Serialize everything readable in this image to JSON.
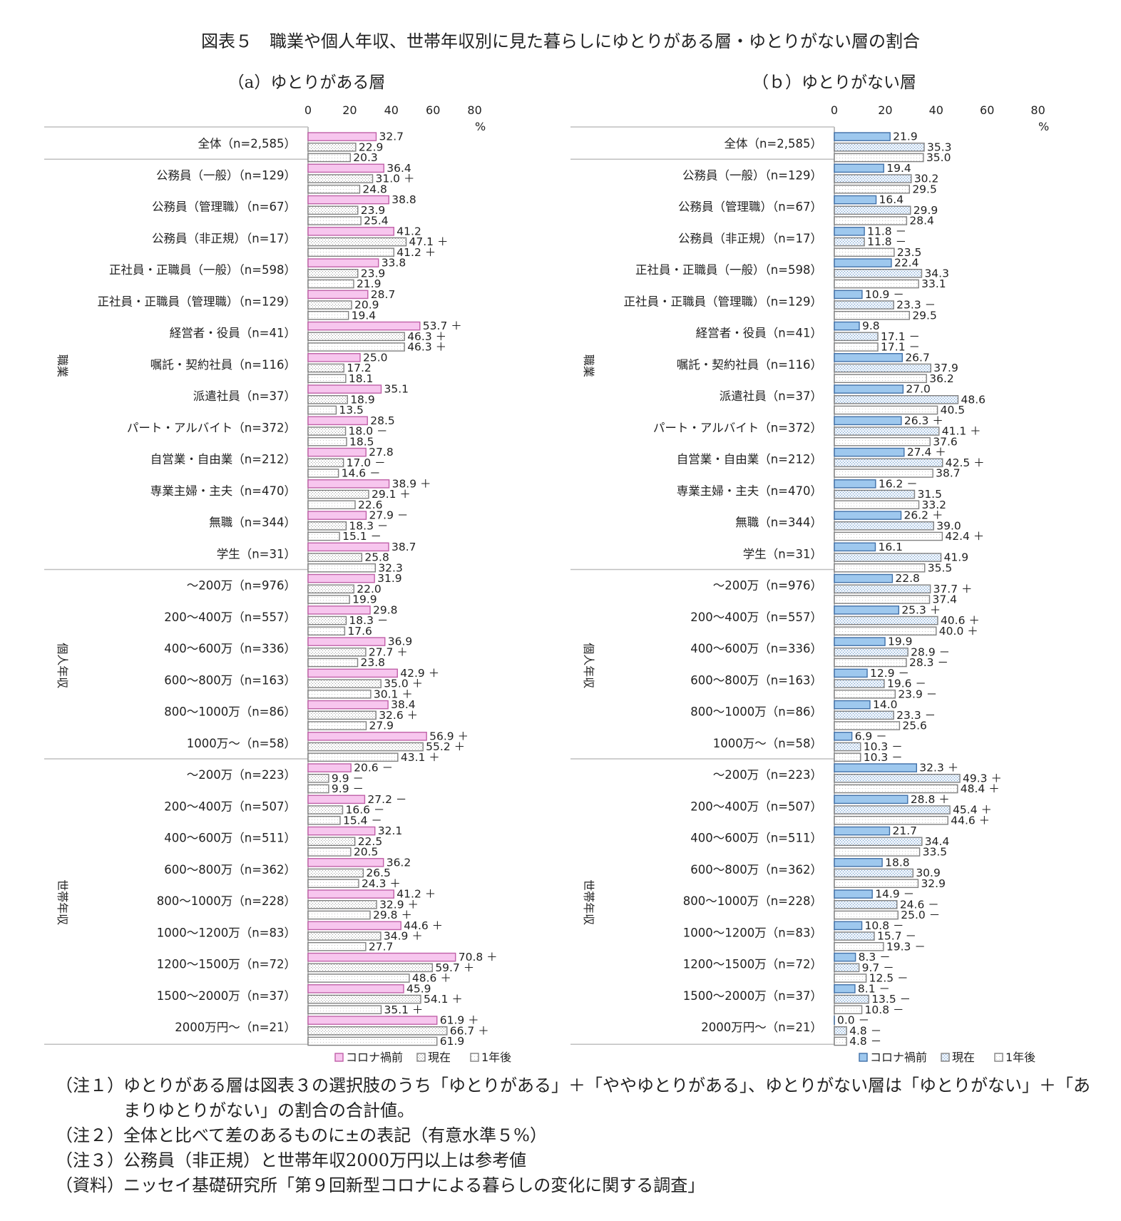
{
  "title": "図表５　職業や個人年収、世帯年収別に見た暮らしにゆとりがある層・ゆとりがない層の割合",
  "percent_unit": "%",
  "legend": [
    "コロナ禍前",
    "現在",
    "1年後"
  ],
  "colors": {
    "a_before": "#f7c6ee",
    "a_before_stroke": "#c060a8",
    "b_before": "#9ec8ee",
    "b_before_stroke": "#4070a8",
    "now_stroke": "#808080",
    "after_stroke": "#808080",
    "axis_line": "#bfbfbf",
    "text": "#222222"
  },
  "groups": [
    {
      "label": "職業",
      "start": 1,
      "end": 13
    },
    {
      "label": "個人年収",
      "start": 14,
      "end": 19
    },
    {
      "label": "世帯年収",
      "start": 20,
      "end": 28
    }
  ],
  "categories": [
    "全体（n=2,585）",
    "公務員（一般）（n=129）",
    "公務員（管理職）（n=67）",
    "公務員（非正規）（n=17）",
    "正社員・正職員（一般）（n=598）",
    "正社員・正職員（管理職）（n=129）",
    "経営者・役員（n=41）",
    "嘱託・契約社員（n=116）",
    "派遣社員（n=37）",
    "パート・アルバイト（n=372）",
    "自営業・自由業（n=212）",
    "専業主婦・主夫（n=470）",
    "無職（n=344）",
    "学生（n=31）",
    "～200万（n=976）",
    "200～400万（n=557）",
    "400～600万（n=336）",
    "600～800万（n=163）",
    "800～1000万（n=86）",
    "1000万～（n=58）",
    "～200万（n=223）",
    "200～400万（n=507）",
    "400～600万（n=511）",
    "600～800万（n=362）",
    "800～1000万（n=228）",
    "1000～1200万（n=83）",
    "1200～1500万（n=72）",
    "1500～2000万（n=37）",
    "2000万円～（n=21）"
  ],
  "chart_data": [
    {
      "type": "bar",
      "panel_title": "（a）ゆとりがある層",
      "xlim": [
        0,
        80
      ],
      "xticks": [
        0,
        20,
        40,
        60,
        80
      ],
      "series": [
        {
          "name": "コロナ禍前",
          "values": [
            32.7,
            36.4,
            38.8,
            41.2,
            33.8,
            28.7,
            53.7,
            25.0,
            35.1,
            28.5,
            27.8,
            38.9,
            27.9,
            38.7,
            31.9,
            29.8,
            36.9,
            42.9,
            38.4,
            56.9,
            20.6,
            27.2,
            32.1,
            36.2,
            41.2,
            44.6,
            70.8,
            45.9,
            61.9
          ],
          "marks": [
            "",
            "",
            "",
            "",
            "",
            "",
            "＋",
            "",
            "",
            "",
            "",
            "＋",
            "－",
            "",
            "",
            "",
            "",
            "＋",
            "",
            "＋",
            "－",
            "－",
            "",
            "",
            "＋",
            "＋",
            "＋",
            "",
            "＋"
          ]
        },
        {
          "name": "現在",
          "values": [
            22.9,
            31.0,
            23.9,
            47.1,
            23.9,
            20.9,
            46.3,
            17.2,
            18.9,
            18.0,
            17.0,
            29.1,
            18.3,
            25.8,
            22.0,
            18.3,
            27.7,
            35.0,
            32.6,
            55.2,
            9.9,
            16.6,
            22.5,
            26.5,
            32.9,
            34.9,
            59.7,
            54.1,
            66.7
          ],
          "marks": [
            "",
            "＋",
            "",
            "＋",
            "",
            "",
            "＋",
            "",
            "",
            "－",
            "－",
            "＋",
            "－",
            "",
            "",
            "－",
            "＋",
            "＋",
            "＋",
            "＋",
            "－",
            "－",
            "",
            "",
            "＋",
            "＋",
            "＋",
            "＋",
            "＋"
          ]
        },
        {
          "name": "1年後",
          "values": [
            20.3,
            24.8,
            25.4,
            41.2,
            21.9,
            19.4,
            46.3,
            18.1,
            13.5,
            18.5,
            14.6,
            22.6,
            15.1,
            32.3,
            19.9,
            17.6,
            23.8,
            30.1,
            27.9,
            43.1,
            9.9,
            15.4,
            20.5,
            24.3,
            29.8,
            27.7,
            48.6,
            35.1,
            61.9
          ],
          "marks": [
            "",
            "",
            "",
            "＋",
            "",
            "",
            "＋",
            "",
            "",
            "",
            "－",
            "",
            "－",
            "",
            "",
            "",
            "",
            "＋",
            "",
            "＋",
            "－",
            "－",
            "",
            "＋",
            "＋",
            "",
            "＋",
            "＋",
            ""
          ]
        }
      ]
    },
    {
      "type": "bar",
      "panel_title": "（ｂ）ゆとりがない層",
      "xlim": [
        0,
        80
      ],
      "xticks": [
        0,
        20,
        40,
        60,
        80
      ],
      "series": [
        {
          "name": "コロナ禍前",
          "values": [
            21.9,
            19.4,
            16.4,
            11.8,
            22.4,
            10.9,
            9.8,
            26.7,
            27.0,
            26.3,
            27.4,
            16.2,
            26.2,
            16.1,
            22.8,
            25.3,
            19.9,
            12.9,
            14.0,
            6.9,
            32.3,
            28.8,
            21.7,
            18.8,
            14.9,
            10.8,
            8.3,
            8.1,
            0.0
          ],
          "marks": [
            "",
            "",
            "",
            "－",
            "",
            "－",
            "",
            "",
            "",
            "＋",
            "＋",
            "－",
            "＋",
            "",
            "",
            "＋",
            "",
            "－",
            "",
            "－",
            "＋",
            "＋",
            "",
            "",
            "－",
            "－",
            "－",
            "－",
            "－"
          ]
        },
        {
          "name": "現在",
          "values": [
            35.3,
            30.2,
            29.9,
            11.8,
            34.3,
            23.3,
            17.1,
            37.9,
            48.6,
            41.1,
            42.5,
            31.5,
            39.0,
            41.9,
            37.7,
            40.6,
            28.9,
            19.6,
            23.3,
            10.3,
            49.3,
            45.4,
            34.4,
            30.9,
            24.6,
            15.7,
            9.7,
            13.5,
            4.8
          ],
          "marks": [
            "",
            "",
            "",
            "－",
            "",
            "－",
            "－",
            "",
            "",
            "＋",
            "＋",
            "",
            "",
            "",
            "＋",
            "＋",
            "－",
            "－",
            "－",
            "－",
            "＋",
            "＋",
            "",
            "",
            "－",
            "－",
            "－",
            "－",
            "－"
          ]
        },
        {
          "name": "1年後",
          "values": [
            35.0,
            29.5,
            28.4,
            23.5,
            33.1,
            29.5,
            17.1,
            36.2,
            40.5,
            37.6,
            38.7,
            33.2,
            42.4,
            35.5,
            37.4,
            40.0,
            28.3,
            23.9,
            25.6,
            10.3,
            48.4,
            44.6,
            33.5,
            32.9,
            25.0,
            19.3,
            12.5,
            10.8,
            4.8
          ],
          "marks": [
            "",
            "",
            "",
            "",
            "",
            "",
            "－",
            "",
            "",
            "",
            "",
            "",
            "＋",
            "",
            "",
            "＋",
            "－",
            "－",
            "",
            "－",
            "＋",
            "＋",
            "",
            "",
            "－",
            "－",
            "－",
            "－",
            "－"
          ]
        }
      ]
    }
  ],
  "notes": [
    {
      "label": "（注１）",
      "text": "ゆとりがある層は図表３の選択肢のうち「ゆとりがある」＋「ややゆとりがある」、ゆとりがない層は「ゆとりがない」＋「あまりゆとりがない」の割合の合計値。"
    },
    {
      "label": "（注２）",
      "text": "全体と比べて差のあるものに±の表記（有意水準５%）"
    },
    {
      "label": "（注３）",
      "text": "公務員（非正規）と世帯年収2000万円以上は参考値"
    },
    {
      "label": "（資料）",
      "text": "ニッセイ基礎研究所「第９回新型コロナによる暮らしの変化に関する調査」"
    }
  ]
}
